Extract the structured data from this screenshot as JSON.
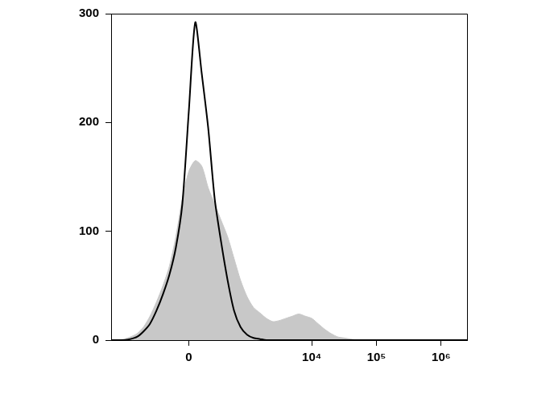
{
  "chart_data": {
    "type": "line",
    "categories": [
      null,
      null,
      null,
      null,
      null,
      null,
      null,
      null,
      null,
      null,
      null,
      null,
      "0",
      null,
      null,
      null,
      null,
      null,
      null,
      null,
      null,
      null,
      null,
      null,
      null,
      null,
      null,
      null,
      null,
      null,
      null,
      "10⁴",
      null,
      null,
      null,
      null,
      null,
      null,
      null,
      null,
      null,
      "10⁵",
      null,
      null,
      null,
      null,
      null,
      null,
      null,
      null,
      null,
      "10⁶",
      null,
      null,
      null,
      null
    ],
    "series": [
      {
        "type": "area",
        "color": "#c8c8c8",
        "values": [
          0,
          0,
          1,
          3,
          6,
          12,
          22,
          35,
          50,
          68,
          95,
          130,
          155,
          165,
          160,
          140,
          125,
          110,
          95,
          75,
          55,
          40,
          30,
          25,
          20,
          17,
          18,
          20,
          22,
          24,
          22,
          20,
          15,
          10,
          6,
          3,
          2,
          1,
          0,
          0,
          0,
          0,
          0,
          0,
          0,
          0,
          0,
          0,
          0,
          0,
          0,
          0,
          0,
          0,
          0,
          0
        ]
      },
      {
        "type": "line",
        "color": "#000000",
        "values": [
          0,
          0,
          0,
          1,
          3,
          8,
          15,
          27,
          42,
          60,
          85,
          125,
          210,
          292,
          245,
          195,
          130,
          90,
          55,
          27,
          12,
          5,
          2,
          1,
          0,
          0,
          0,
          0,
          0,
          0,
          0,
          0,
          0,
          0,
          0,
          0,
          0,
          0,
          0,
          0,
          0,
          0,
          0,
          0,
          0,
          0,
          0,
          0,
          0,
          0,
          0,
          0,
          0,
          0,
          0,
          0
        ]
      }
    ],
    "ylim": [
      0,
      300
    ],
    "yticks": [
      0,
      100,
      200,
      300
    ],
    "grid": false
  }
}
